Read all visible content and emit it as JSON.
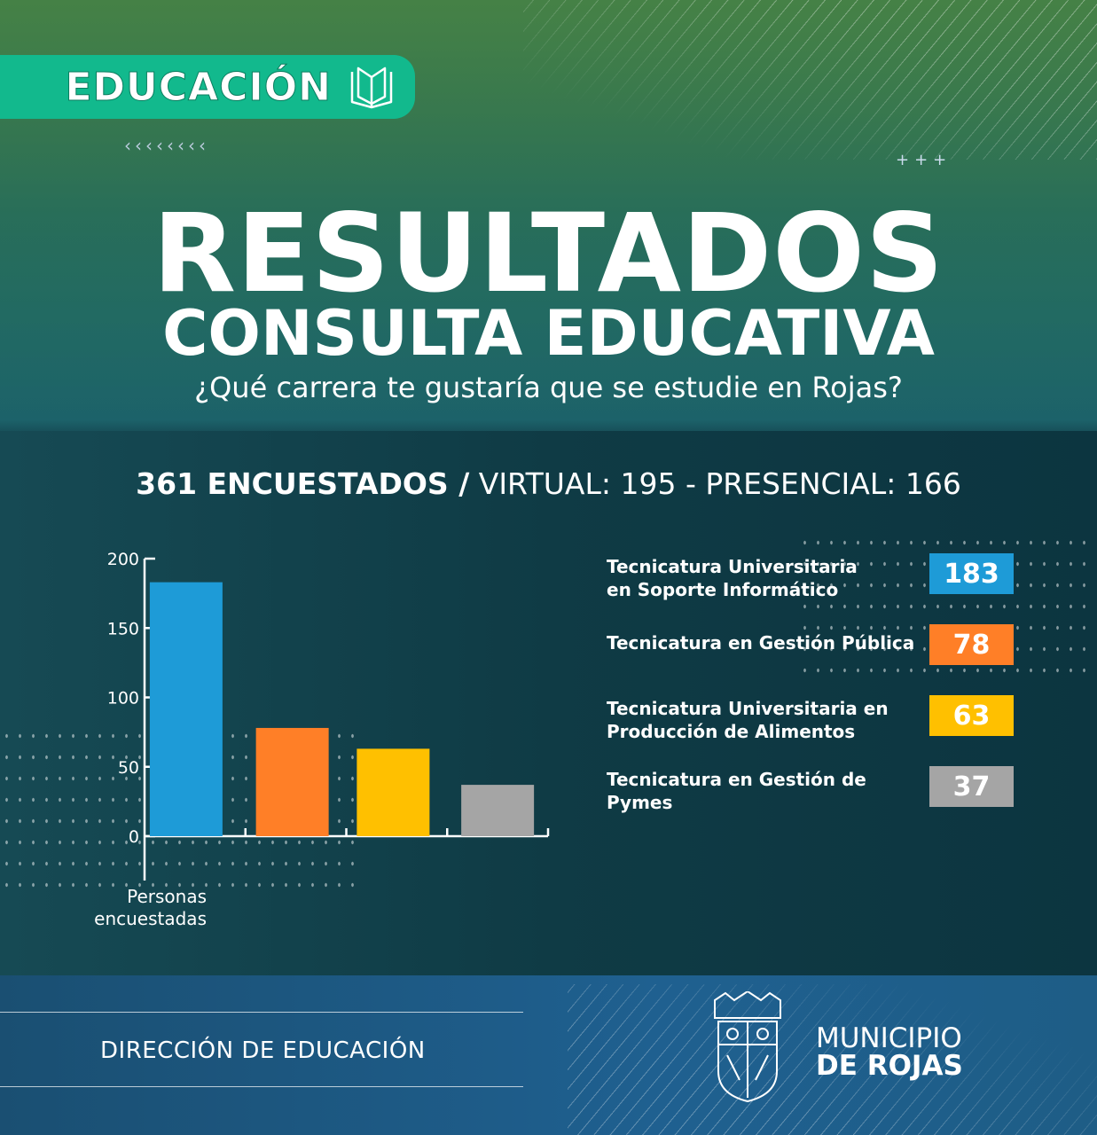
{
  "header": {
    "badge": "EDUCACIÓN",
    "badge_icon": "open-book-icon",
    "chevrons": "‹‹‹‹‹‹‹‹",
    "plus_marks": "+++"
  },
  "title": "RESULTADOS",
  "subtitle": "CONSULTA EDUCATIVA",
  "question": "¿Qué carrera te gustaría que se estudie en Rojas?",
  "stats": {
    "total": "361 ENCUESTADOS /",
    "detail": "VIRTUAL: 195 - PRESENCIAL: 166"
  },
  "chart_data": {
    "type": "bar",
    "categories": [
      "Tecnicatura Universitaria en Soporte Informático",
      "Tecnicatura en Gestión Pública",
      "Tecnicatura Universitaria en Producción de Alimentos",
      "Tecnicatura en Gestión de Pymes"
    ],
    "values": [
      183,
      78,
      63,
      37
    ],
    "colors": [
      "#1e9bd7",
      "#ff7f27",
      "#ffc000",
      "#a5a5a5"
    ],
    "xlabel": "Personas encuestadas",
    "ylabel": "",
    "ylim": [
      0,
      200
    ],
    "yticks": [
      "0",
      "50",
      "100",
      "150",
      "200"
    ],
    "grid": false,
    "legend_placement": "right",
    "legend": [
      {
        "label_line1": "Tecnicatura Universitaria",
        "label_line2": "en Soporte Informático",
        "value": "183"
      },
      {
        "label_line1": "Tecnicatura en Gestión Pública",
        "label_line2": "",
        "value": "78"
      },
      {
        "label_line1": "Tecnicatura Universitaria en",
        "label_line2": "Producción de Alimentos",
        "value": "63"
      },
      {
        "label_line1": "Tecnicatura en Gestión de",
        "label_line2": "Pymes",
        "value": "37"
      }
    ]
  },
  "footer": {
    "department": "DIRECCIÓN  DE EDUCACIÓN",
    "municipio_line1": "MUNICIPIO",
    "municipio_line2": "DE ROJAS",
    "crest_icon": "coat-of-arms-icon"
  }
}
